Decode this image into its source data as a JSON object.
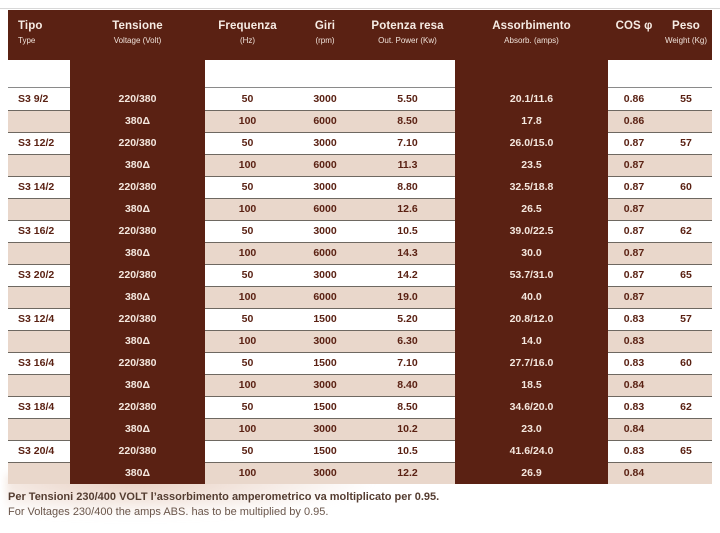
{
  "colors": {
    "header_brown": "#5A2113",
    "row_pink": "#E9D7CB",
    "light_text_on_dark": "#F4E7DE",
    "separator_gray": "#6e6861"
  },
  "table": {
    "headers": [
      {
        "label": "Tipo",
        "sublabel": "Type"
      },
      {
        "label": "Tensione",
        "sublabel": "Voltage (Volt)"
      },
      {
        "label": "Frequenza",
        "sublabel": "(Hz)"
      },
      {
        "label": "Giri",
        "sublabel": "(rpm)"
      },
      {
        "label": "Potenza resa",
        "sublabel": "Out. Power (Kw)"
      },
      {
        "label": "Assorbimento",
        "sublabel": "Absorb. (amps)"
      },
      {
        "label": "COS φ",
        "sublabel": ""
      },
      {
        "label": "Peso",
        "sublabel": "Weight (Kg)"
      }
    ],
    "rows": [
      {
        "tipo": "S3 9/2",
        "tensione": "220/380",
        "frequenza": "50",
        "giri": "3000",
        "potenza": "5.50",
        "assorbimento": "20.1/11.6",
        "cos": "0.86",
        "peso": "55"
      },
      {
        "tipo": "",
        "tensione": "380Δ",
        "frequenza": "100",
        "giri": "6000",
        "potenza": "8.50",
        "assorbimento": "17.8",
        "cos": "0.86",
        "peso": ""
      },
      {
        "tipo": "S3 12/2",
        "tensione": "220/380",
        "frequenza": "50",
        "giri": "3000",
        "potenza": "7.10",
        "assorbimento": "26.0/15.0",
        "cos": "0.87",
        "peso": "57"
      },
      {
        "tipo": "",
        "tensione": "380Δ",
        "frequenza": "100",
        "giri": "6000",
        "potenza": "11.3",
        "assorbimento": "23.5",
        "cos": "0.87",
        "peso": ""
      },
      {
        "tipo": "S3 14/2",
        "tensione": "220/380",
        "frequenza": "50",
        "giri": "3000",
        "potenza": "8.80",
        "assorbimento": "32.5/18.8",
        "cos": "0.87",
        "peso": "60"
      },
      {
        "tipo": "",
        "tensione": "380Δ",
        "frequenza": "100",
        "giri": "6000",
        "potenza": "12.6",
        "assorbimento": "26.5",
        "cos": "0.87",
        "peso": ""
      },
      {
        "tipo": "S3 16/2",
        "tensione": "220/380",
        "frequenza": "50",
        "giri": "3000",
        "potenza": "10.5",
        "assorbimento": "39.0/22.5",
        "cos": "0.87",
        "peso": "62"
      },
      {
        "tipo": "",
        "tensione": "380Δ",
        "frequenza": "100",
        "giri": "6000",
        "potenza": "14.3",
        "assorbimento": "30.0",
        "cos": "0.87",
        "peso": ""
      },
      {
        "tipo": "S3 20/2",
        "tensione": "220/380",
        "frequenza": "50",
        "giri": "3000",
        "potenza": "14.2",
        "assorbimento": "53.7/31.0",
        "cos": "0.87",
        "peso": "65"
      },
      {
        "tipo": "",
        "tensione": "380Δ",
        "frequenza": "100",
        "giri": "6000",
        "potenza": "19.0",
        "assorbimento": "40.0",
        "cos": "0.87",
        "peso": ""
      },
      {
        "tipo": "S3 12/4",
        "tensione": "220/380",
        "frequenza": "50",
        "giri": "1500",
        "potenza": "5.20",
        "assorbimento": "20.8/12.0",
        "cos": "0.83",
        "peso": "57"
      },
      {
        "tipo": "",
        "tensione": "380Δ",
        "frequenza": "100",
        "giri": "3000",
        "potenza": "6.30",
        "assorbimento": "14.0",
        "cos": "0.83",
        "peso": ""
      },
      {
        "tipo": "S3 16/4",
        "tensione": "220/380",
        "frequenza": "50",
        "giri": "1500",
        "potenza": "7.10",
        "assorbimento": "27.7/16.0",
        "cos": "0.83",
        "peso": "60"
      },
      {
        "tipo": "",
        "tensione": "380Δ",
        "frequenza": "100",
        "giri": "3000",
        "potenza": "8.40",
        "assorbimento": "18.5",
        "cos": "0.84",
        "peso": ""
      },
      {
        "tipo": "S3 18/4",
        "tensione": "220/380",
        "frequenza": "50",
        "giri": "1500",
        "potenza": "8.50",
        "assorbimento": "34.6/20.0",
        "cos": "0.83",
        "peso": "62"
      },
      {
        "tipo": "",
        "tensione": "380Δ",
        "frequenza": "100",
        "giri": "3000",
        "potenza": "10.2",
        "assorbimento": "23.0",
        "cos": "0.84",
        "peso": ""
      },
      {
        "tipo": "S3 20/4",
        "tensione": "220/380",
        "frequenza": "50",
        "giri": "1500",
        "potenza": "10.5",
        "assorbimento": "41.6/24.0",
        "cos": "0.83",
        "peso": "65"
      },
      {
        "tipo": "",
        "tensione": "380Δ",
        "frequenza": "100",
        "giri": "3000",
        "potenza": "12.2",
        "assorbimento": "26.9",
        "cos": "0.84",
        "peso": ""
      }
    ]
  },
  "footer": {
    "line1": "Per Tensioni 230/400 VOLT l’assorbimento amperometrico va moltiplicato per 0.95.",
    "line2": "For Voltages 230/400 the amps ABS. has to be multiplied by 0.95."
  }
}
